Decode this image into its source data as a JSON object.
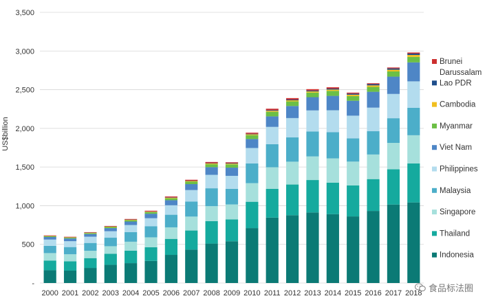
{
  "chart_data": {
    "type": "bar",
    "stacked": true,
    "title": "",
    "xlabel": "",
    "ylabel": "US$billion",
    "ylim": [
      0,
      3500
    ],
    "yticks": [
      0,
      500,
      1000,
      1500,
      2000,
      2500,
      3000,
      3500
    ],
    "ytick_labels": [
      "-",
      "500",
      "1,000",
      "1,500",
      "2,000",
      "2,500",
      "3,000",
      "3,500"
    ],
    "grid": "horizontal",
    "legend_position": "right",
    "categories": [
      "2000",
      "2001",
      "2002",
      "2003",
      "2004",
      "2005",
      "2006",
      "2007",
      "2008",
      "2009",
      "2010",
      "2011",
      "2012",
      "2013",
      "2014",
      "2015",
      "2016",
      "2017",
      "2018"
    ],
    "series": [
      {
        "name": "Indonesia",
        "color": "#0b7a75",
        "values": [
          165,
          160,
          195,
          235,
          257,
          286,
          364,
          432,
          510,
          540,
          710,
          846,
          877,
          912,
          891,
          861,
          932,
          1015,
          1042
        ]
      },
      {
        "name": "Thailand",
        "color": "#15aa9e",
        "values": [
          126,
          120,
          127,
          143,
          162,
          177,
          207,
          247,
          291,
          282,
          341,
          371,
          397,
          420,
          407,
          401,
          412,
          456,
          505
        ]
      },
      {
        "name": "Singapore",
        "color": "#a6e0dc",
        "values": [
          96,
          92,
          95,
          98,
          115,
          128,
          149,
          180,
          193,
          194,
          240,
          280,
          295,
          305,
          314,
          308,
          318,
          341,
          364
        ]
      },
      {
        "name": "Malaysia",
        "color": "#4caec9",
        "values": [
          94,
          93,
          101,
          110,
          125,
          144,
          163,
          194,
          231,
          202,
          255,
          298,
          314,
          323,
          338,
          301,
          301,
          319,
          355
        ]
      },
      {
        "name": "Philippines",
        "color": "#b3dcee",
        "values": [
          81,
          76,
          81,
          84,
          91,
          103,
          122,
          149,
          174,
          168,
          200,
          224,
          250,
          272,
          284,
          293,
          305,
          314,
          342
        ]
      },
      {
        "name": "Viet Nam",
        "color": "#4e86c6",
        "values": [
          33,
          35,
          35,
          40,
          45,
          58,
          66,
          77,
          99,
          106,
          116,
          136,
          156,
          171,
          186,
          193,
          205,
          224,
          245
        ]
      },
      {
        "name": "Myanmar",
        "color": "#6cbf45",
        "values": [
          9,
          10,
          12,
          14,
          17,
          20,
          25,
          31,
          38,
          42,
          50,
          59,
          60,
          60,
          65,
          60,
          63,
          67,
          71
        ]
      },
      {
        "name": "Cambodia",
        "color": "#f1bf1f",
        "values": [
          4,
          4,
          4,
          5,
          5,
          6,
          7,
          9,
          10,
          10,
          11,
          13,
          14,
          15,
          17,
          18,
          20,
          22,
          25
        ]
      },
      {
        "name": "Lao PDR",
        "color": "#1f4e8c",
        "values": [
          2,
          2,
          2,
          2,
          3,
          3,
          4,
          4,
          5,
          6,
          7,
          8,
          9,
          11,
          12,
          14,
          16,
          17,
          18
        ]
      },
      {
        "name": "Brunei Darussalam",
        "color": "#cc2f2f",
        "values": [
          6,
          6,
          6,
          7,
          8,
          10,
          12,
          12,
          14,
          11,
          14,
          19,
          19,
          18,
          17,
          13,
          11,
          12,
          14
        ]
      }
    ]
  },
  "legend": {
    "order": [
      9,
      8,
      7,
      6,
      5,
      4,
      3,
      2,
      1,
      0
    ],
    "labels": [
      [
        "Brunei",
        "Darussalam"
      ],
      [
        "Lao PDR"
      ],
      [
        "Cambodia"
      ],
      [
        "Myanmar"
      ],
      [
        "Viet Nam"
      ],
      [
        "Philippines"
      ],
      [
        "Malaysia"
      ],
      [
        "Singapore"
      ],
      [
        "Thailand"
      ],
      [
        "Indonesia"
      ]
    ]
  },
  "watermark": {
    "text": "食品标法圈",
    "icon": "wechat-icon"
  }
}
